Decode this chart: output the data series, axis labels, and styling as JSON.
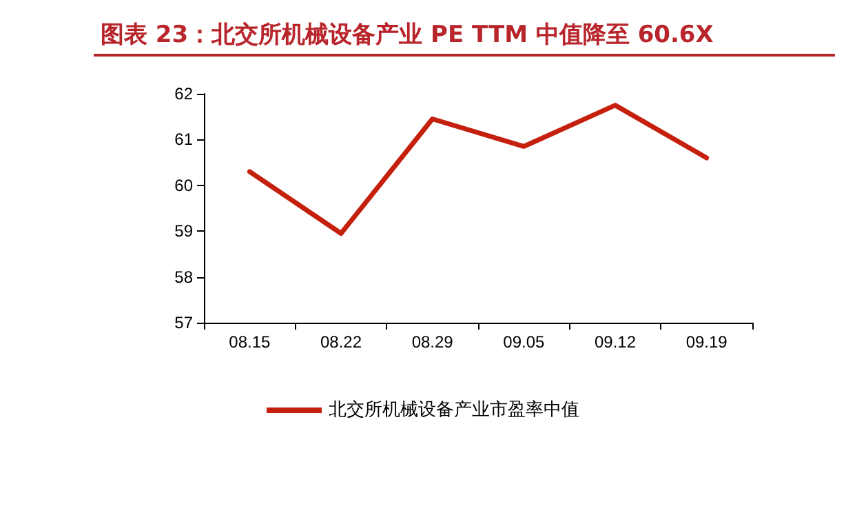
{
  "chart_data": {
    "type": "line",
    "title": "图表 23：北交所机械设备产业 PE TTM 中值降至 60.6X",
    "categories": [
      "08.15",
      "08.22",
      "08.29",
      "09.05",
      "09.12",
      "09.19"
    ],
    "series": [
      {
        "name": "北交所机械设备产业市盈率中值",
        "color": "#c4200d",
        "values": [
          60.3,
          58.95,
          61.45,
          60.85,
          61.75,
          60.6
        ]
      }
    ],
    "ylim": [
      57,
      62
    ],
    "yticks": [
      57,
      58,
      59,
      60,
      61,
      62
    ],
    "grid": false,
    "legend": "bottom",
    "marker": "none",
    "line_style": "solid"
  }
}
